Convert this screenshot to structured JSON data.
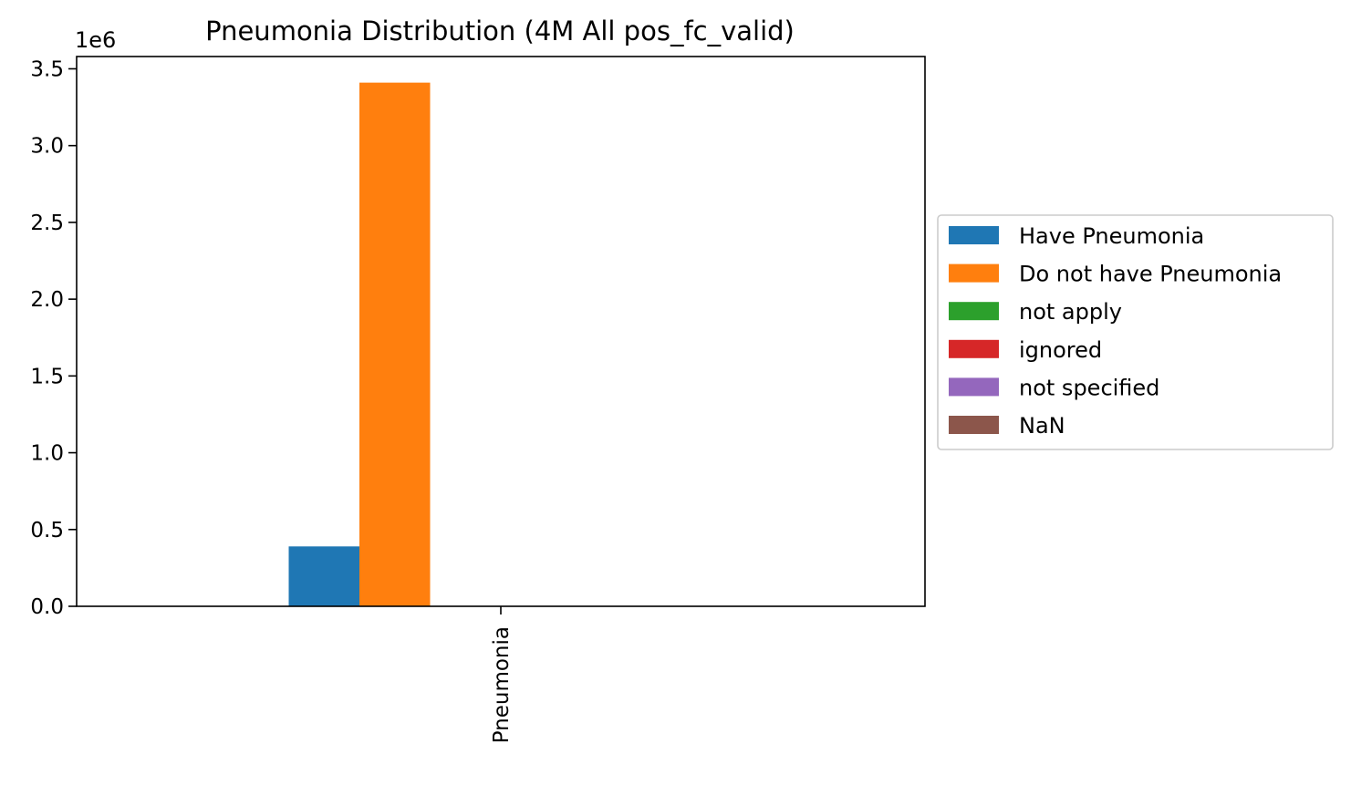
{
  "chart_data": {
    "type": "bar",
    "title": "Pneumonia Distribution (4M All pos_fc_valid)",
    "categories": [
      "Pneumonia"
    ],
    "series": [
      {
        "name": "Have Pneumonia",
        "color": "#1f77b4",
        "values": [
          390000
        ]
      },
      {
        "name": "Do not have Pneumonia",
        "color": "#ff7f0e",
        "values": [
          3410000
        ]
      },
      {
        "name": "not apply",
        "color": "#2ca02c",
        "values": [
          0
        ]
      },
      {
        "name": "ignored",
        "color": "#d62728",
        "values": [
          0
        ]
      },
      {
        "name": "not specified",
        "color": "#9467bd",
        "values": [
          0
        ]
      },
      {
        "name": "NaN",
        "color": "#8c564b",
        "values": [
          0
        ]
      }
    ],
    "ylim": [
      0,
      3580000
    ],
    "yticks": [
      0,
      500000,
      1000000,
      1500000,
      2000000,
      2500000,
      3000000,
      3500000
    ],
    "ytick_labels": [
      "0.0",
      "0.5",
      "1.0",
      "1.5",
      "2.0",
      "2.5",
      "3.0",
      "3.5"
    ],
    "y_offset_label": "1e6",
    "legend": "outside-right",
    "grid": false
  }
}
